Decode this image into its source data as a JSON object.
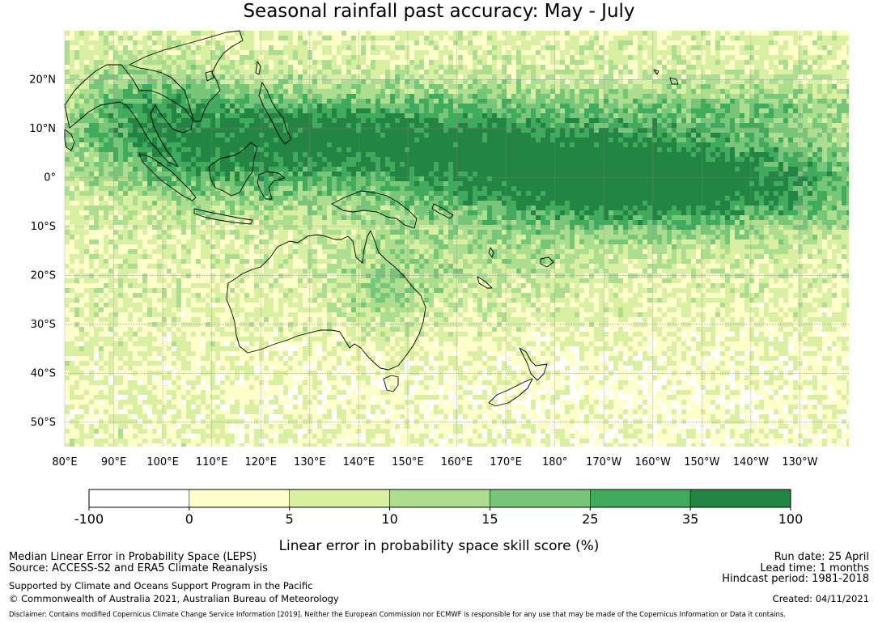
{
  "title": "Seasonal rainfall past accuracy: May - July",
  "map": {
    "lat_labels": [
      "20°N",
      "10°N",
      "0°",
      "10°S",
      "20°S",
      "30°S",
      "40°S",
      "50°S"
    ],
    "lon_labels": [
      "80°E",
      "90°E",
      "100°E",
      "110°E",
      "120°E",
      "130°E",
      "140°E",
      "150°E",
      "160°E",
      "170°E",
      "180°",
      "170°W",
      "160°W",
      "150°W",
      "140°W",
      "130°W"
    ],
    "lat_range": [
      -55,
      30
    ],
    "lon_range": [
      80,
      240
    ],
    "gridlines": true
  },
  "colorbar": {
    "ticks": [
      "-100",
      "0",
      "5",
      "10",
      "15",
      "25",
      "35",
      "100"
    ],
    "colors": [
      "#ffffff",
      "#ffffcc",
      "#d9f0a3",
      "#addd8e",
      "#78c679",
      "#41ab5d",
      "#238443"
    ],
    "label": "Linear error in probability space skill score (%)"
  },
  "info": {
    "metric": "Median Linear Error in Probability Space (LEPS)",
    "source": "Source: ACCESS-S2 and ERA5 Climate Reanalysis",
    "support": "Supported by Climate and Oceans Support Program in the Pacific",
    "copyright": "© Commonwealth of Australia 2021, Australian Bureau of Meteorology",
    "run_date": "Run date: 25 April",
    "lead_time": "Lead time: 1 months",
    "hindcast": "Hindcast period: 1981-2018",
    "created": "Created: 04/11/2021",
    "disclaimer": "Disclaimer: Contains modified Copernicus Climate Change Service Information [2019]. Neither the European Commission nor ECMWF is responsible for any use that may be made of the Copernicus Information or Data it contains."
  }
}
